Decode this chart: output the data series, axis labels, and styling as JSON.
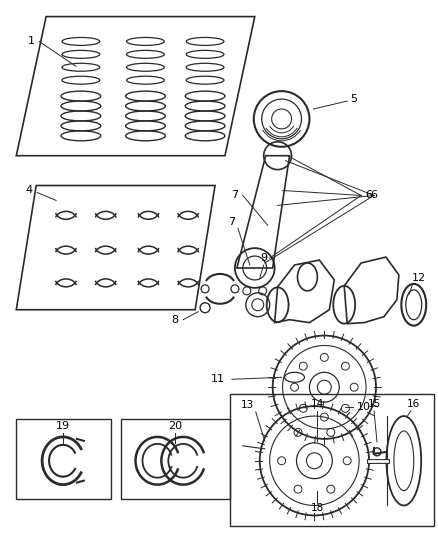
{
  "bg_color": "#ffffff",
  "fig_width": 4.39,
  "fig_height": 5.33,
  "dpi": 100,
  "line_color": "#2a2a2a",
  "text_color": "#000000",
  "font_size": 7.5
}
